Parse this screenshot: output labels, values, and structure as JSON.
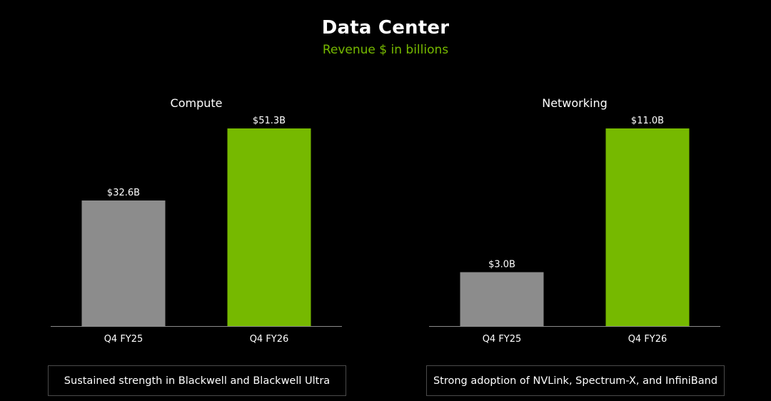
{
  "header": {
    "title": "Data Center",
    "subtitle": "Revenue $ in billions"
  },
  "colors": {
    "background": "#000000",
    "prior_bar": "#8c8c8c",
    "current_bar": "#76b900",
    "subtitle": "#76b900",
    "axis": "#8a8a8a",
    "caption_border": "#4a4a4a"
  },
  "chart_data": [
    {
      "type": "bar",
      "title": "Compute",
      "categories": [
        "Q4 FY25",
        "Q4 FY26"
      ],
      "values": [
        32.6,
        51.3
      ],
      "value_labels": [
        "$32.6B",
        "$51.3B"
      ],
      "bar_colors": [
        "#8c8c8c",
        "#76b900"
      ],
      "ylim": [
        0,
        51.3
      ],
      "caption": "Sustained strength in Blackwell and Blackwell Ultra"
    },
    {
      "type": "bar",
      "title": "Networking",
      "categories": [
        "Q4 FY25",
        "Q4 FY26"
      ],
      "values": [
        3.0,
        11.0
      ],
      "value_labels": [
        "$3.0B",
        "$11.0B"
      ],
      "bar_colors": [
        "#8c8c8c",
        "#76b900"
      ],
      "ylim": [
        0,
        11.0
      ],
      "caption": "Strong adoption of NVLink, Spectrum-X, and InfiniBand"
    }
  ]
}
